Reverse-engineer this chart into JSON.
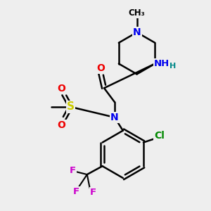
{
  "bg_color": "#eeeeee",
  "atom_colors": {
    "N": "#0000ee",
    "O": "#ee0000",
    "S": "#cccc00",
    "F": "#cc00cc",
    "Cl": "#008800",
    "H": "#008888",
    "C": "#000000"
  },
  "bond_color": "#000000",
  "figsize": [
    3.0,
    3.0
  ],
  "dpi": 100
}
